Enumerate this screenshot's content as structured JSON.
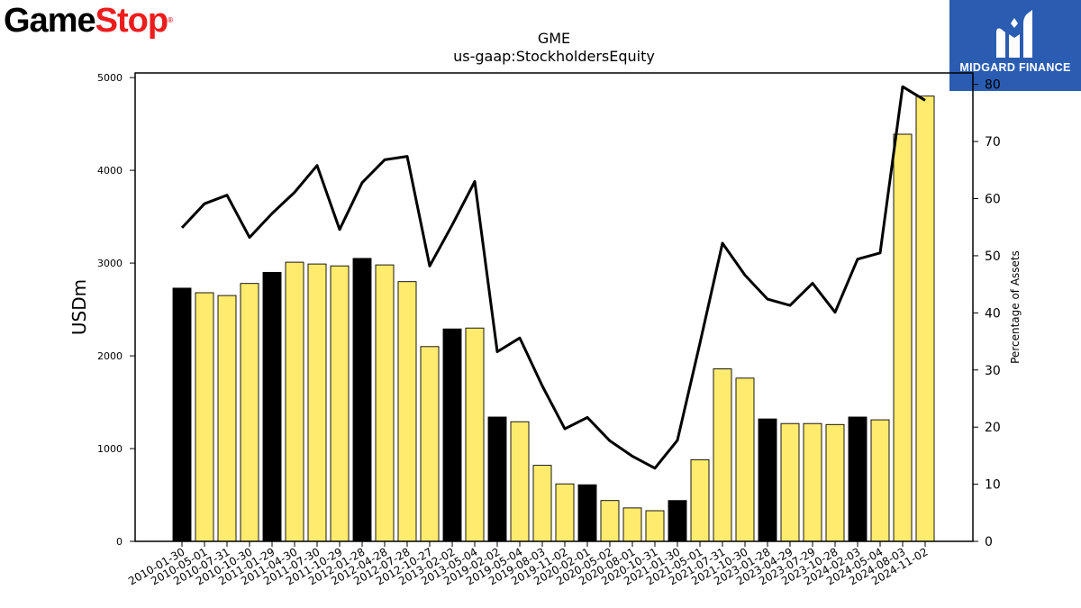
{
  "logos": {
    "left": {
      "part1": "Game",
      "part2": "Stop",
      "mark": "®"
    },
    "right": {
      "text": "MIDGARD FINANCE",
      "icon": "midgard-logo-icon"
    }
  },
  "colors": {
    "highlight_bar": "#000000",
    "bar": "#ffeb6e",
    "line": "#000000",
    "brand_blue": "#2a5cb2",
    "brand_red": "#ee1c1c"
  },
  "chart_data": {
    "type": "bar",
    "title": "GME",
    "subtitle": "us-gaap:StockholdersEquity",
    "ylabel": "USDm",
    "y2label": "Percentage of Assets",
    "ylim": [
      0,
      5050
    ],
    "y2lim": [
      0,
      82
    ],
    "yticks": [
      "0",
      "1000",
      "2000",
      "3000",
      "4000",
      "5000"
    ],
    "y2ticks": [
      "0",
      "10",
      "20",
      "30",
      "40",
      "50",
      "60",
      "70",
      "80"
    ],
    "grid": false,
    "categories": [
      "2010-01-30",
      "2010-05-01",
      "2010-07-31",
      "2010-10-30",
      "2011-01-29",
      "2011-04-30",
      "2011-07-30",
      "2011-10-29",
      "2012-01-28",
      "2012-04-28",
      "2012-07-28",
      "2012-10-27",
      "2013-02-02",
      "2013-05-04",
      "2019-02-02",
      "2019-05-04",
      "2019-08-03",
      "2019-11-02",
      "2020-02-01",
      "2020-05-02",
      "2020-08-01",
      "2020-10-31",
      "2021-01-30",
      "2021-05-01",
      "2021-07-31",
      "2021-10-30",
      "2023-01-28",
      "2023-04-29",
      "2023-07-29",
      "2023-10-28",
      "2024-02-03",
      "2024-05-04",
      "2024-08-03",
      "2024-11-02"
    ],
    "series": [
      {
        "type": "bar",
        "values": [
          2730,
          2680,
          2650,
          2780,
          2900,
          3010,
          2990,
          2970,
          3050,
          2980,
          2800,
          2100,
          2290,
          2300,
          1340,
          1290,
          820,
          620,
          610,
          440,
          360,
          330,
          440,
          880,
          1860,
          1760,
          1320,
          1270,
          1270,
          1260,
          1340,
          1310,
          4390,
          4800
        ],
        "highlight": [
          true,
          false,
          false,
          false,
          true,
          false,
          false,
          false,
          true,
          false,
          false,
          false,
          true,
          false,
          true,
          false,
          false,
          false,
          true,
          false,
          false,
          false,
          true,
          false,
          false,
          false,
          true,
          false,
          false,
          false,
          true,
          false,
          false,
          false
        ]
      },
      {
        "type": "line",
        "axis": "right",
        "values": [
          54.9,
          59.1,
          60.6,
          53.2,
          57.4,
          61.1,
          65.8,
          54.6,
          62.8,
          66.8,
          67.4,
          48.2,
          55.4,
          63.0,
          33.2,
          35.6,
          27.2,
          19.7,
          21.7,
          17.6,
          14.9,
          12.8,
          17.7,
          34.7,
          52.2,
          46.6,
          42.4,
          41.3,
          45.2,
          40.1,
          49.4,
          50.5,
          79.6,
          77.2
        ]
      }
    ]
  }
}
